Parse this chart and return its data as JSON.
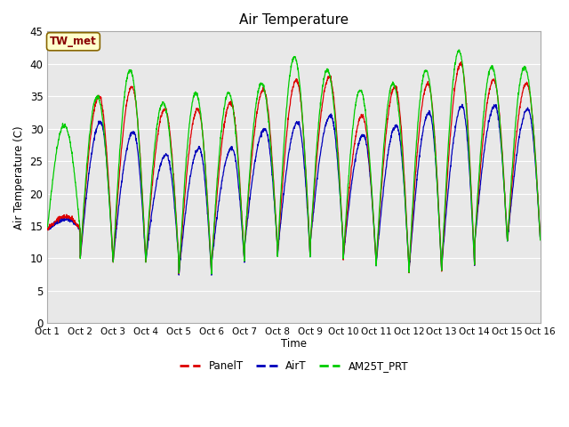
{
  "title": "Air Temperature",
  "ylabel": "Air Temperature (C)",
  "xlabel": "Time",
  "ylim": [
    0,
    45
  ],
  "yticks": [
    0,
    5,
    10,
    15,
    20,
    25,
    30,
    35,
    40,
    45
  ],
  "annotation_text": "TW_met",
  "annotation_bg": "#FFFFCC",
  "annotation_border": "#CC0000",
  "plot_bg_color": "#E8E8E8",
  "legend_labels": [
    "PanelT",
    "AirT",
    "AM25T_PRT"
  ],
  "line_colors": [
    "#DD0000",
    "#0000BB",
    "#00CC00"
  ],
  "line_width": 0.9,
  "xtick_labels": [
    "Oct 1",
    "Oct 2",
    "Oct 3",
    "Oct 4",
    "Oct 5",
    "Oct 6",
    "Oct 7",
    "Oct 8",
    "Oct 9",
    "Oct 10",
    "Oct 11",
    "Oct 12",
    "Oct 13",
    "Oct 14",
    "Oct 15",
    "Oct 16"
  ],
  "num_days": 15,
  "points_per_day": 144,
  "day_mins": [
    14.5,
    10.0,
    9.5,
    10.0,
    7.5,
    9.5,
    12.0,
    10.5,
    12.5,
    10.0,
    9.0,
    8.0,
    9.0,
    12.5,
    13.0
  ],
  "day_maxes_panel": [
    16.5,
    35.0,
    36.5,
    33.0,
    33.0,
    34.0,
    36.0,
    37.5,
    38.0,
    32.0,
    36.5,
    37.0,
    40.0,
    37.5,
    37.0
  ],
  "day_maxes_air": [
    16.0,
    31.0,
    29.5,
    26.0,
    27.0,
    27.0,
    30.0,
    31.0,
    32.0,
    29.0,
    30.5,
    32.5,
    33.5,
    33.5,
    33.0
  ],
  "day_maxes_green": [
    30.5,
    35.0,
    39.0,
    34.0,
    35.5,
    35.5,
    37.0,
    41.0,
    39.0,
    36.0,
    37.0,
    39.0,
    42.0,
    39.5,
    39.5
  ],
  "peak_phase_panel": 0.58,
  "peak_phase_air": 0.62,
  "peak_phase_green": 0.52
}
